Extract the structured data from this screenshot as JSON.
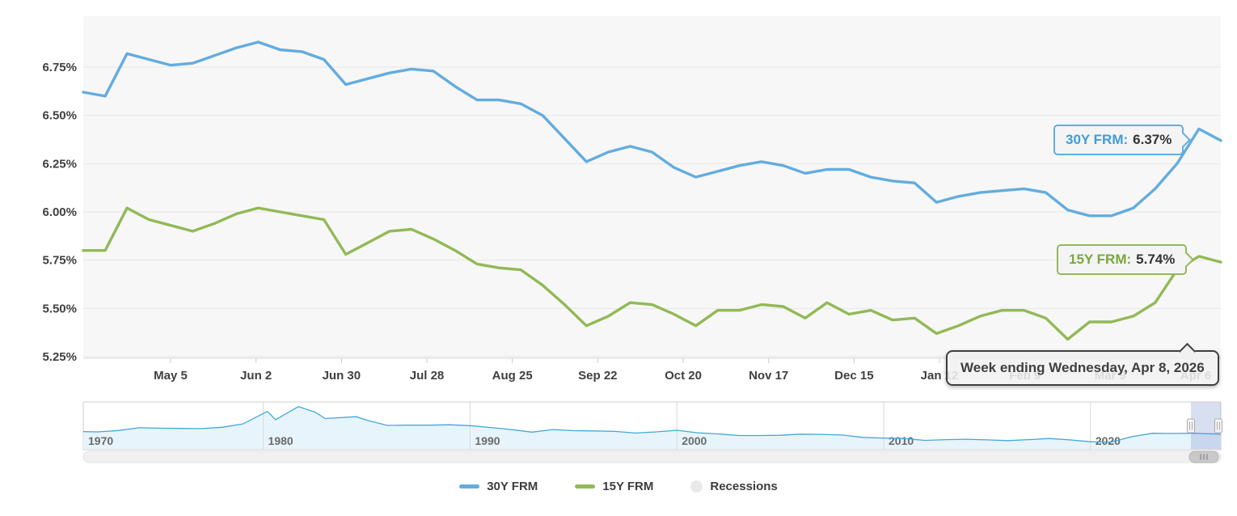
{
  "page": {
    "background": "#ffffff"
  },
  "chart_data": {
    "type": "line",
    "title": "",
    "frequency": "weekly",
    "grid": true,
    "legend_position": "bottom-center",
    "x_axis": {
      "tick_labels": [
        "May 5",
        "Jun 2",
        "Jun 30",
        "Jul 28",
        "Aug 25",
        "Sep 22",
        "Oct 20",
        "Nov 17",
        "Dec 15",
        "Jan 12",
        "Feb 9",
        "Mar 9",
        "Apr 6"
      ]
    },
    "y_axis": {
      "tick_labels": [
        "6.75%",
        "6.50%",
        "6.25%",
        "6.00%",
        "5.75%",
        "5.50%",
        "5.25%"
      ],
      "tick_values": [
        6.75,
        6.5,
        6.25,
        6.0,
        5.75,
        5.5,
        5.25
      ],
      "ylim": [
        5.24,
        7.01
      ]
    },
    "series": [
      {
        "name": "30Y FRM",
        "label_prefix": "30Y FRM:",
        "current": "6.37%",
        "color": "#63acdf",
        "label_text_color": "#3e9bd6",
        "values": [
          6.62,
          6.6,
          6.82,
          6.79,
          6.76,
          6.77,
          6.81,
          6.85,
          6.88,
          6.84,
          6.83,
          6.79,
          6.66,
          6.69,
          6.72,
          6.74,
          6.73,
          6.65,
          6.58,
          6.58,
          6.56,
          6.5,
          6.38,
          6.26,
          6.31,
          6.34,
          6.31,
          6.23,
          6.18,
          6.21,
          6.24,
          6.26,
          6.24,
          6.2,
          6.22,
          6.22,
          6.18,
          6.16,
          6.15,
          6.05,
          6.08,
          6.1,
          6.11,
          6.12,
          6.1,
          6.01,
          5.98,
          5.98,
          6.02,
          6.12,
          6.25,
          6.43,
          6.37
        ]
      },
      {
        "name": "15Y FRM",
        "label_prefix": "15Y FRM:",
        "current": "5.74%",
        "color": "#92b956",
        "label_text_color": "#7aa73d",
        "values": [
          5.8,
          5.8,
          6.02,
          5.96,
          5.93,
          5.9,
          5.94,
          5.99,
          6.02,
          6.0,
          5.98,
          5.96,
          5.78,
          5.84,
          5.9,
          5.91,
          5.86,
          5.8,
          5.73,
          5.71,
          5.7,
          5.62,
          5.52,
          5.41,
          5.46,
          5.53,
          5.52,
          5.47,
          5.41,
          5.49,
          5.49,
          5.52,
          5.51,
          5.45,
          5.53,
          5.47,
          5.49,
          5.44,
          5.45,
          5.37,
          5.41,
          5.46,
          5.49,
          5.49,
          5.45,
          5.34,
          5.43,
          5.43,
          5.46,
          5.53,
          5.7,
          5.77,
          5.74
        ]
      }
    ],
    "tooltip_text": "Week ending Wednesday, Apr 8, 2026"
  },
  "navigator": {
    "year_labels": [
      "1970",
      "1980",
      "1990",
      "2000",
      "2010",
      "2020"
    ],
    "x_range_years": [
      1971.3,
      2026.3
    ],
    "y_max": 19,
    "line_color": "#3fa9da",
    "fill_color": "#e8f4fb",
    "selection_fill": "rgba(125,150,210,0.30)",
    "points": [
      [
        1971.3,
        7.5
      ],
      [
        1972,
        7.4
      ],
      [
        1973,
        8.0
      ],
      [
        1974,
        9.2
      ],
      [
        1975,
        9.0
      ],
      [
        1976,
        8.9
      ],
      [
        1977,
        8.8
      ],
      [
        1978,
        9.4
      ],
      [
        1979,
        10.8
      ],
      [
        1980.2,
        16.3
      ],
      [
        1980.6,
        12.7
      ],
      [
        1981.7,
        18.4
      ],
      [
        1982.5,
        16.0
      ],
      [
        1983,
        13.2
      ],
      [
        1984.5,
        14.0
      ],
      [
        1985,
        12.5
      ],
      [
        1986,
        10.2
      ],
      [
        1987,
        10.3
      ],
      [
        1988,
        10.3
      ],
      [
        1989,
        10.5
      ],
      [
        1990,
        10.1
      ],
      [
        1991,
        9.3
      ],
      [
        1992,
        8.4
      ],
      [
        1993,
        7.3
      ],
      [
        1994,
        8.4
      ],
      [
        1995,
        7.9
      ],
      [
        1996,
        7.8
      ],
      [
        1997,
        7.6
      ],
      [
        1998,
        6.9
      ],
      [
        1999,
        7.4
      ],
      [
        2000,
        8.1
      ],
      [
        2001,
        7.0
      ],
      [
        2002,
        6.5
      ],
      [
        2003,
        5.8
      ],
      [
        2004,
        5.8
      ],
      [
        2005,
        5.9
      ],
      [
        2006,
        6.4
      ],
      [
        2007,
        6.3
      ],
      [
        2008,
        6.0
      ],
      [
        2009,
        5.0
      ],
      [
        2010,
        4.7
      ],
      [
        2011,
        4.5
      ],
      [
        2012,
        3.7
      ],
      [
        2013,
        4.0
      ],
      [
        2014,
        4.2
      ],
      [
        2015,
        3.9
      ],
      [
        2016,
        3.6
      ],
      [
        2017,
        4.0
      ],
      [
        2018,
        4.5
      ],
      [
        2019,
        3.9
      ],
      [
        2020,
        3.1
      ],
      [
        2021,
        3.0
      ],
      [
        2022,
        5.3
      ],
      [
        2023,
        6.8
      ],
      [
        2024,
        6.7
      ],
      [
        2025,
        6.8
      ],
      [
        2026.3,
        6.4
      ]
    ]
  },
  "legend": {
    "items": [
      {
        "label": "30Y FRM",
        "swatch": "line",
        "color": "#63acdf"
      },
      {
        "label": "15Y FRM",
        "swatch": "line",
        "color": "#92b956"
      },
      {
        "label": "Recessions",
        "swatch": "circle",
        "color": "#e9e9e9"
      }
    ]
  }
}
